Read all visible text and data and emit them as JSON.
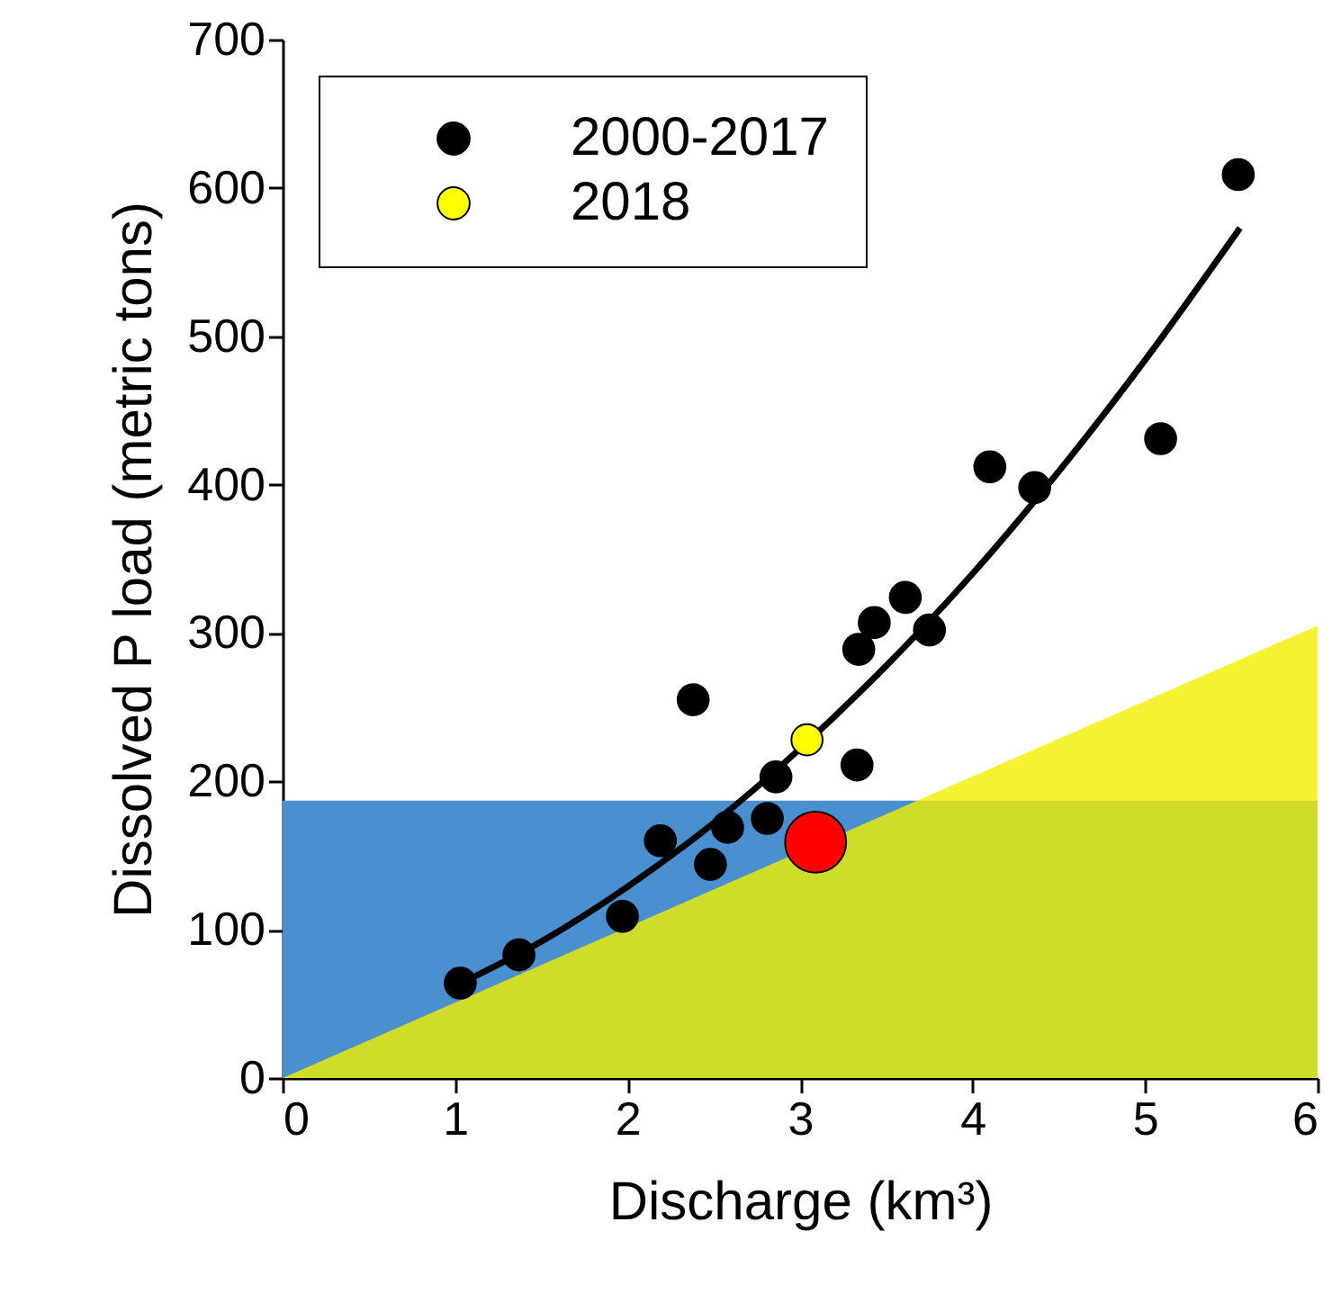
{
  "chart_data": {
    "type": "scatter",
    "xlabel": "Discharge (km³)",
    "ylabel": "Dissolved P load (metric tons)",
    "xlim": [
      0,
      6
    ],
    "ylim": [
      0,
      700
    ],
    "xticks": [
      0,
      1,
      2,
      3,
      4,
      5,
      6
    ],
    "yticks": [
      0,
      100,
      200,
      300,
      400,
      500,
      600,
      700
    ],
    "legend": "top left",
    "bands": [
      {
        "axis": "y",
        "from": 0,
        "to": 187,
        "color": "#4a8fd0"
      }
    ],
    "series": [
      {
        "type": "area",
        "color": "#f0f000",
        "x": [
          0,
          6
        ],
        "values": [
          0,
          305
        ]
      },
      {
        "type": "line",
        "color": "#000000",
        "x": [
          1.0,
          1.5,
          2.0,
          2.5,
          3.0,
          3.5,
          4.0,
          4.5,
          5.0,
          5.55
        ],
        "values": [
          62,
          92,
          129,
          172,
          222,
          278,
          340,
          409,
          484,
          573
        ]
      },
      {
        "name": "2000-2017",
        "color": "#000000",
        "marker": "circle",
        "x": [
          1.03,
          1.37,
          1.97,
          2.19,
          2.38,
          2.48,
          2.58,
          2.81,
          2.86,
          3.33,
          3.34,
          3.43,
          3.61,
          3.75,
          4.1,
          4.36,
          5.09,
          5.54
        ],
        "values": [
          64,
          83,
          109,
          160,
          255,
          144,
          169,
          175,
          203,
          211,
          289,
          307,
          324,
          302,
          412,
          398,
          431,
          609
        ]
      },
      {
        "name": "2018",
        "color": "#ffff00",
        "marker": "circle",
        "x": [
          3.04
        ],
        "values": [
          228
        ]
      },
      {
        "type": "bubble",
        "color": "#ff0000",
        "marker": "circle",
        "x": [
          3.09
        ],
        "values": [
          159
        ],
        "sizes": [
          1
        ]
      }
    ]
  }
}
